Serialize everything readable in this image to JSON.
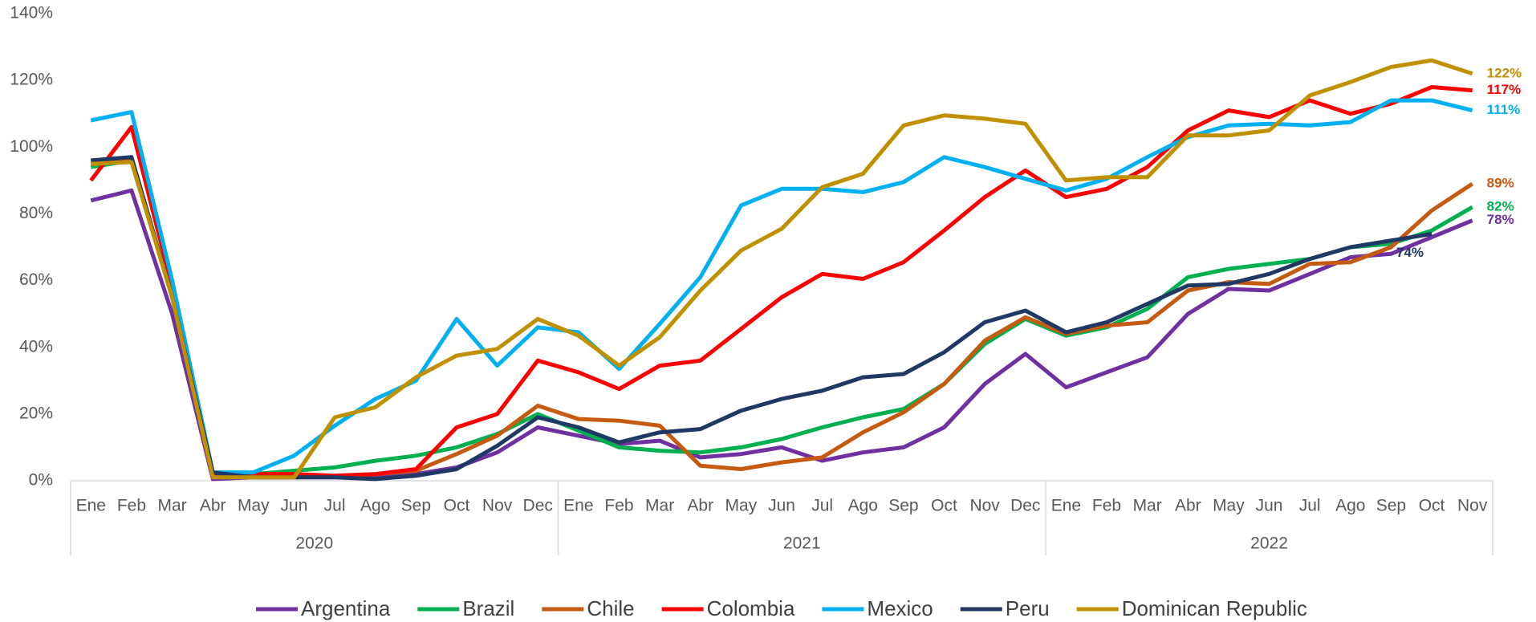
{
  "chart_data": {
    "type": "line",
    "categories": [
      "Ene",
      "Feb",
      "Mar",
      "Abr",
      "May",
      "Jun",
      "Jul",
      "Ago",
      "Sep",
      "Oct",
      "Nov",
      "Dec",
      "Ene",
      "Feb",
      "Mar",
      "Abr",
      "May",
      "Jun",
      "Jul",
      "Ago",
      "Sep",
      "Oct",
      "Nov",
      "Dec",
      "Ene",
      "Feb",
      "Mar",
      "Abr",
      "May",
      "Jun",
      "Jul",
      "Ago",
      "Sep",
      "Oct",
      "Nov"
    ],
    "x_groups": [
      {
        "label": "2020",
        "count": 12
      },
      {
        "label": "2021",
        "count": 12
      },
      {
        "label": "2022",
        "count": 11
      }
    ],
    "ylim": [
      0,
      140
    ],
    "yticks": [
      {
        "value": 0,
        "label": "0%"
      },
      {
        "value": 20,
        "label": "20%"
      },
      {
        "value": 40,
        "label": "40%"
      },
      {
        "value": 60,
        "label": "60%"
      },
      {
        "value": 80,
        "label": "80%"
      },
      {
        "value": 100,
        "label": "100%"
      },
      {
        "value": 120,
        "label": "120%"
      },
      {
        "value": 140,
        "label": "140%"
      }
    ],
    "grid": false,
    "legend": "bottom",
    "series": [
      {
        "name": "Argentina",
        "color": "#7030a0",
        "values": [
          84,
          87,
          50,
          0.5,
          1,
          1,
          1,
          1,
          2,
          4,
          8.5,
          16,
          13.5,
          11,
          12,
          7,
          8,
          10,
          6,
          8.5,
          10,
          16,
          29,
          38,
          28,
          32.5,
          37,
          50,
          57.5,
          57,
          62,
          67,
          68,
          73,
          78
        ],
        "value_labels": [
          null,
          null,
          null,
          null,
          null,
          null,
          null,
          null,
          null,
          null,
          null,
          null,
          null,
          null,
          null,
          null,
          null,
          null,
          null,
          null,
          null,
          null,
          null,
          null,
          null,
          null,
          null,
          null,
          null,
          null,
          null,
          null,
          null,
          null,
          "78%"
        ]
      },
      {
        "name": "Brazil",
        "color": "#00b050",
        "values": [
          94,
          96,
          55,
          2,
          2,
          3,
          4,
          6,
          7.5,
          10,
          14,
          20,
          15,
          10,
          9,
          8.5,
          10,
          12.5,
          16,
          19,
          21.5,
          29,
          41,
          48.5,
          43.5,
          46,
          51.5,
          61,
          63.5,
          65,
          66.5,
          70,
          71,
          75,
          82
        ],
        "value_labels": [
          null,
          null,
          null,
          null,
          null,
          null,
          null,
          null,
          null,
          null,
          null,
          null,
          null,
          null,
          null,
          null,
          null,
          null,
          null,
          null,
          null,
          null,
          null,
          null,
          null,
          null,
          null,
          null,
          null,
          null,
          null,
          null,
          null,
          null,
          "82%"
        ]
      },
      {
        "name": "Chile",
        "color": "#c55a11",
        "values": [
          95,
          96,
          55,
          1.5,
          1.5,
          1.5,
          1.5,
          2,
          3,
          8,
          13.5,
          22.5,
          18.5,
          18,
          16.5,
          4.5,
          3.5,
          5.5,
          7,
          14.5,
          20.5,
          29,
          42,
          49,
          44,
          46.5,
          47.5,
          57,
          59.5,
          59,
          65,
          65.5,
          70,
          81,
          89
        ],
        "value_labels": [
          null,
          null,
          null,
          null,
          null,
          null,
          null,
          null,
          null,
          null,
          null,
          null,
          null,
          null,
          null,
          null,
          null,
          null,
          null,
          null,
          null,
          null,
          null,
          null,
          null,
          null,
          null,
          null,
          null,
          null,
          null,
          null,
          null,
          null,
          "89%"
        ]
      },
      {
        "name": "Colombia",
        "color": "#ff0000",
        "values": [
          90,
          106,
          58,
          2,
          2,
          2,
          1.5,
          2,
          3.5,
          16,
          20,
          36,
          32.5,
          27.5,
          34.5,
          36,
          45.5,
          55,
          62,
          60.5,
          65.5,
          75,
          85,
          93,
          85,
          87.5,
          94,
          105,
          111,
          109,
          114,
          110,
          113,
          118,
          117
        ],
        "value_labels": [
          null,
          null,
          null,
          null,
          null,
          null,
          null,
          null,
          null,
          null,
          null,
          null,
          null,
          null,
          null,
          null,
          null,
          null,
          null,
          null,
          null,
          null,
          null,
          null,
          null,
          null,
          null,
          null,
          null,
          null,
          null,
          null,
          null,
          null,
          "117%"
        ]
      },
      {
        "name": "Mexico",
        "color": "#00b0f0",
        "values": [
          108,
          110.5,
          60,
          2.5,
          2.5,
          7.5,
          16.5,
          24.5,
          30,
          48.5,
          34.5,
          46,
          44.5,
          33.5,
          47,
          61,
          82.5,
          87.5,
          87.5,
          86.5,
          89.5,
          97,
          94,
          90.5,
          87,
          90.5,
          97,
          103,
          106.5,
          107,
          106.5,
          107.5,
          114,
          114,
          111
        ],
        "value_labels": [
          null,
          null,
          null,
          null,
          null,
          null,
          null,
          null,
          null,
          null,
          null,
          null,
          null,
          null,
          null,
          null,
          null,
          null,
          null,
          null,
          null,
          null,
          null,
          null,
          null,
          null,
          null,
          null,
          null,
          null,
          null,
          null,
          null,
          null,
          "111%"
        ]
      },
      {
        "name": "Peru",
        "color": "#1f3864",
        "values": [
          96,
          97,
          55,
          2.5,
          1,
          1,
          1,
          0.5,
          1.5,
          3.5,
          10.5,
          19,
          16,
          11.5,
          14.5,
          15.5,
          21,
          24.5,
          27,
          31,
          32,
          38.5,
          47.5,
          51,
          44.5,
          47.5,
          53,
          58.5,
          59,
          62,
          66.5,
          70,
          72,
          74,
          null
        ],
        "value_labels": [
          null,
          null,
          null,
          null,
          null,
          null,
          null,
          null,
          null,
          null,
          null,
          null,
          null,
          null,
          null,
          null,
          null,
          null,
          null,
          null,
          null,
          null,
          null,
          null,
          null,
          null,
          null,
          null,
          null,
          null,
          null,
          null,
          null,
          "74%",
          null
        ]
      },
      {
        "name": "Dominican Republic",
        "color": "#bf9000",
        "values": [
          95,
          95.5,
          55,
          1,
          1,
          1,
          19,
          22,
          31,
          37.5,
          39.5,
          48.5,
          43.5,
          34.5,
          43,
          57,
          69,
          75.5,
          88,
          92,
          106.5,
          109.5,
          108.5,
          107,
          90,
          91,
          91,
          103.5,
          103.5,
          105,
          115.5,
          119.5,
          124,
          126,
          122
        ],
        "value_labels": [
          null,
          null,
          null,
          null,
          null,
          null,
          null,
          null,
          null,
          null,
          null,
          null,
          null,
          null,
          null,
          null,
          null,
          null,
          null,
          null,
          null,
          null,
          null,
          null,
          null,
          null,
          null,
          null,
          null,
          null,
          null,
          null,
          null,
          null,
          "122%"
        ]
      }
    ]
  }
}
